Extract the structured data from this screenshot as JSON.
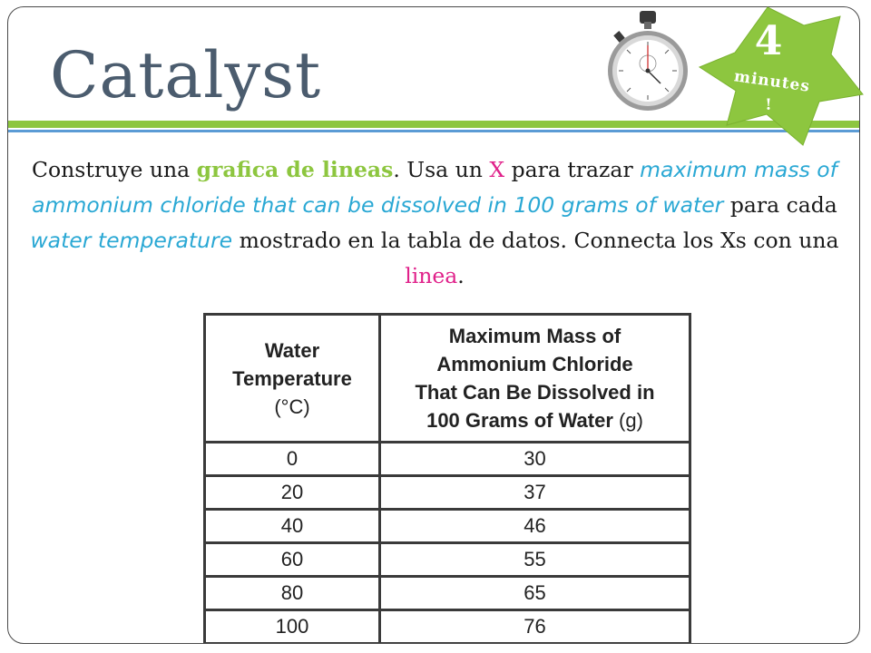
{
  "title": "Catalyst",
  "badge": {
    "number": "4",
    "word": "minutes",
    "bang": "!"
  },
  "instructions": {
    "p1": "Construye una ",
    "h1": "grafica de lineas",
    "p2": ". Usa un ",
    "h2": "X",
    "p3": " para trazar ",
    "h3": "maximum mass of ammonium chloride that can be dissolved in 100 grams of water",
    "p4": " para cada ",
    "h4": "water temperature",
    "p5": " mostrado en la tabla de datos. Connecta los Xs con una ",
    "h5": "linea",
    "p6": "."
  },
  "table": {
    "headers": [
      {
        "lines": [
          "Water",
          "Temperature"
        ],
        "unit": "(°C)"
      },
      {
        "lines": [
          "Maximum Mass of",
          "Ammonium Chloride",
          "That Can Be Dissolved in",
          "100 Grams of Water"
        ],
        "unit": "(g)"
      }
    ],
    "rows": [
      [
        "0",
        "30"
      ],
      [
        "20",
        "37"
      ],
      [
        "40",
        "46"
      ],
      [
        "60",
        "55"
      ],
      [
        "80",
        "65"
      ],
      [
        "100",
        "76"
      ]
    ]
  },
  "colors": {
    "green_accent": "#8dc63f",
    "blue_accent": "#5b9bd5",
    "magenta": "#e0218a",
    "cyan_text": "#2aa8d4",
    "title": "#4b5c6e"
  },
  "icons": [
    "stopwatch-icon",
    "starburst-badge"
  ]
}
